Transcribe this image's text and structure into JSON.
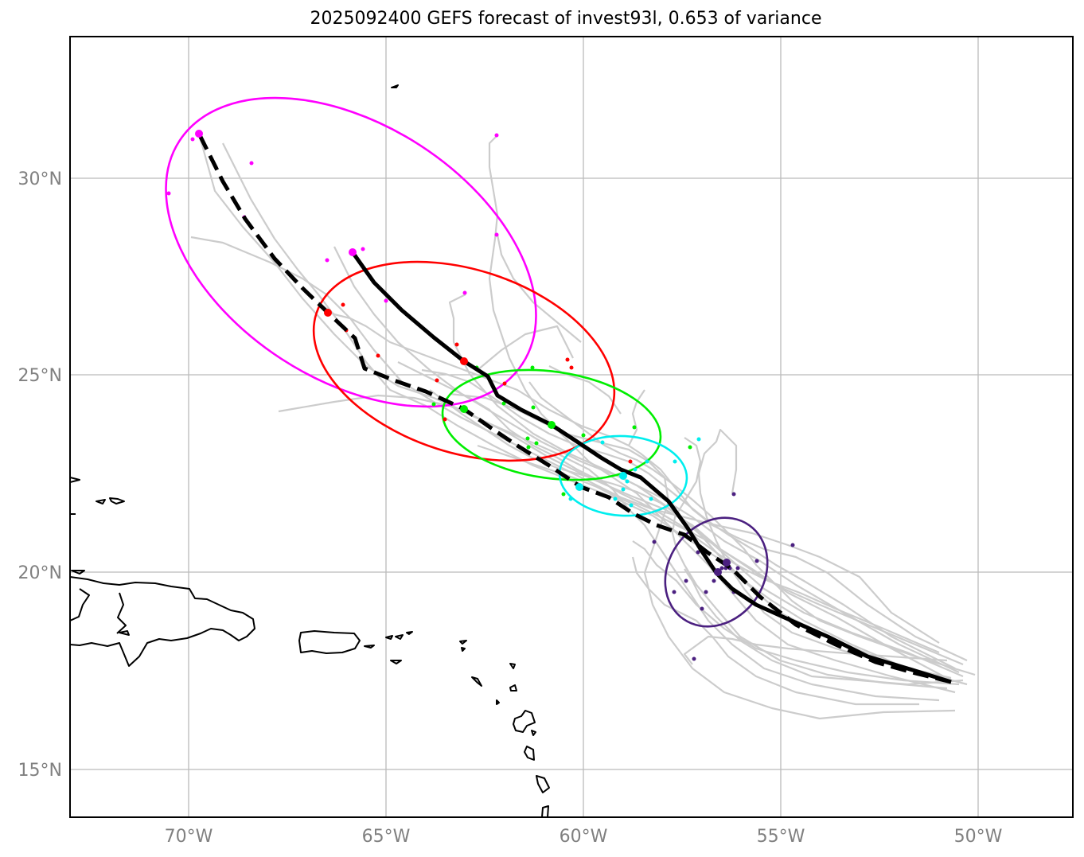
{
  "title": "2025092400 GEFS forecast of invest93l, 0.653 of variance",
  "x_ticks": [
    "70°W",
    "65°W",
    "60°W",
    "55°W",
    "50°W"
  ],
  "y_ticks": [
    "30°N",
    "25°N",
    "20°N",
    "15°N"
  ],
  "colors": {
    "ensemble": "#cccccc",
    "track": "#000000",
    "land": "#000000",
    "grid": "#bbbbbb",
    "ellipses": [
      "#ff00ff",
      "#ff0000",
      "#00ee00",
      "#00eeee",
      "#4b2080"
    ]
  },
  "map": {
    "lon_range": [
      -73,
      -47.6
    ],
    "lat_range": [
      13.8,
      33.6
    ]
  }
}
